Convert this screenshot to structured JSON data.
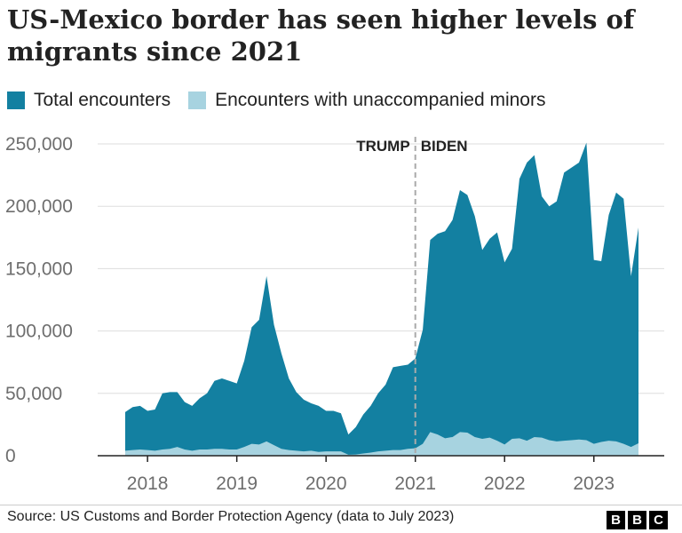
{
  "title": "US-Mexico border has seen higher levels of migrants since 2021",
  "legend": {
    "total_label": "Total encounters",
    "minors_label": "Encounters with unaccompanied minors"
  },
  "colors": {
    "total": "#1380A1",
    "minors": "#A7D3E0",
    "grid": "#dddddd",
    "axis": "#222222"
  },
  "footer": {
    "source": "Source: US Customs and Border Protection Agency (data to July 2023)",
    "logo_letters": [
      "B",
      "B",
      "C"
    ]
  },
  "chart_data": {
    "type": "area",
    "title": "US-Mexico border has seen higher levels of migrants since 2021",
    "xlabel": "",
    "ylabel": "",
    "ylim": [
      0,
      250000
    ],
    "yticks": [
      0,
      50000,
      100000,
      150000,
      200000,
      250000
    ],
    "ytick_labels": [
      "0",
      "50,000",
      "100,000",
      "150,000",
      "200,000",
      "250,000"
    ],
    "xticks": [
      "2018",
      "2019",
      "2020",
      "2021",
      "2022",
      "2023"
    ],
    "grid": true,
    "legend_position": "top",
    "annotations": [
      {
        "label": "TRUMP",
        "side": "left",
        "x": "2021-01"
      },
      {
        "label": "BIDEN",
        "side": "right",
        "x": "2021-01"
      }
    ],
    "x": [
      "2017-10",
      "2017-11",
      "2017-12",
      "2018-01",
      "2018-02",
      "2018-03",
      "2018-04",
      "2018-05",
      "2018-06",
      "2018-07",
      "2018-08",
      "2018-09",
      "2018-10",
      "2018-11",
      "2018-12",
      "2019-01",
      "2019-02",
      "2019-03",
      "2019-04",
      "2019-05",
      "2019-06",
      "2019-07",
      "2019-08",
      "2019-09",
      "2019-10",
      "2019-11",
      "2019-12",
      "2020-01",
      "2020-02",
      "2020-03",
      "2020-04",
      "2020-05",
      "2020-06",
      "2020-07",
      "2020-08",
      "2020-09",
      "2020-10",
      "2020-11",
      "2020-12",
      "2021-01",
      "2021-02",
      "2021-03",
      "2021-04",
      "2021-05",
      "2021-06",
      "2021-07",
      "2021-08",
      "2021-09",
      "2021-10",
      "2021-11",
      "2021-12",
      "2022-01",
      "2022-02",
      "2022-03",
      "2022-04",
      "2022-05",
      "2022-06",
      "2022-07",
      "2022-08",
      "2022-09",
      "2022-10",
      "2022-11",
      "2022-12",
      "2023-01",
      "2023-02",
      "2023-03",
      "2023-04",
      "2023-05",
      "2023-06",
      "2023-07"
    ],
    "series": [
      {
        "name": "Total encounters",
        "values": [
          35000,
          39000,
          40000,
          36000,
          37000,
          50000,
          51000,
          51000,
          43000,
          40000,
          46000,
          50000,
          60000,
          62000,
          60000,
          58000,
          76000,
          103000,
          109000,
          144000,
          105000,
          82000,
          62000,
          51000,
          45000,
          42000,
          40000,
          36000,
          36000,
          34000,
          17000,
          23000,
          33000,
          40000,
          50000,
          57000,
          71000,
          72000,
          73000,
          78000,
          101000,
          173000,
          178000,
          180000,
          189000,
          213000,
          209000,
          192000,
          165000,
          174000,
          179000,
          155000,
          166000,
          222000,
          235000,
          241000,
          208000,
          200000,
          204000,
          227000,
          231000,
          235000,
          251000,
          157000,
          156000,
          193000,
          211000,
          206000,
          144000,
          183000
        ]
      },
      {
        "name": "Encounters with unaccompanied minors",
        "values": [
          4000,
          4500,
          5000,
          4500,
          4000,
          5000,
          5500,
          7000,
          5000,
          4000,
          5000,
          5000,
          5500,
          5500,
          5000,
          5000,
          7000,
          9500,
          9000,
          11500,
          8500,
          5500,
          4500,
          4000,
          3500,
          4000,
          3000,
          3500,
          3500,
          3500,
          800,
          1000,
          1800,
          2500,
          3500,
          4000,
          4500,
          4500,
          5500,
          6000,
          9500,
          19000,
          17000,
          14000,
          15000,
          19000,
          18500,
          15000,
          13500,
          14500,
          12000,
          9000,
          13500,
          14000,
          12000,
          15000,
          14500,
          12500,
          11500,
          12000,
          12500,
          13000,
          12500,
          9500,
          11000,
          12000,
          11500,
          9500,
          7000,
          10000
        ]
      }
    ]
  }
}
